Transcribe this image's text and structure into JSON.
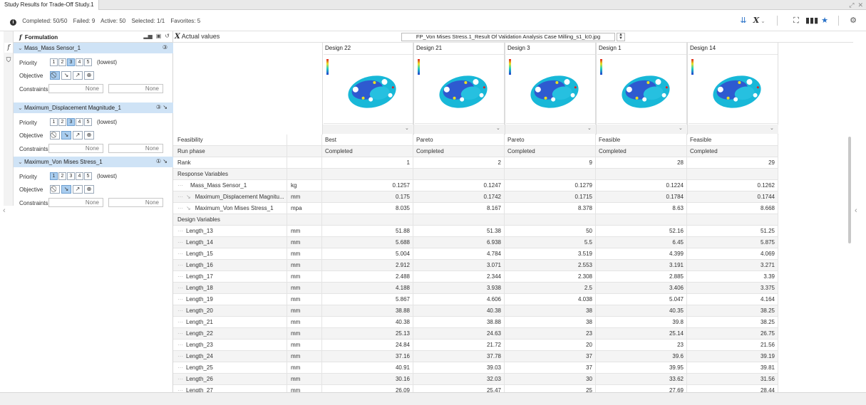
{
  "window": {
    "title": "Study Results for Trade-Off Study.1"
  },
  "status": {
    "completed": "Completed: 50/50",
    "failed": "Failed: 9",
    "active": "Active: 50",
    "selected": "Selected: 1/1",
    "favorites": "Favorites: 5"
  },
  "formulation": {
    "title": "Formulation",
    "sections": [
      {
        "title": "Mass_Mass Sensor_1",
        "badge": "③",
        "priority": [
          "1",
          "2",
          "3",
          "4",
          "5"
        ],
        "priority_selected": "3",
        "priority_note": "(lowest)",
        "objective_selected": 0,
        "constraints": [
          "None",
          "None"
        ]
      },
      {
        "title": "Maximum_Displacement Magnitude_1",
        "badge": "③ ↘",
        "priority": [
          "1",
          "2",
          "3",
          "4",
          "5"
        ],
        "priority_selected": "3",
        "priority_note": "(lowest)",
        "objective_selected": 1,
        "constraints": [
          "None",
          "None"
        ]
      },
      {
        "title": "Maximum_Von Mises Stress_1",
        "badge": "① ↘",
        "priority": [
          "1",
          "2",
          "3",
          "4",
          "5"
        ],
        "priority_selected": "1",
        "priority_note": "(lowest)",
        "objective_selected": 1,
        "constraints": [
          "None",
          "None"
        ]
      }
    ],
    "labels": {
      "priority": "Priority",
      "objective": "Objective",
      "constraints": "Constraints"
    },
    "objective_icons": [
      "⃠",
      "↘",
      "↗",
      "⊕"
    ]
  },
  "results": {
    "x_label": "Actual values",
    "file": "FP_Von Mises Stress.1_Result Of Validation Analysis Case Milling_s1_lc0.jpg",
    "designs": [
      "Design 22",
      "Design 21",
      "Design 3",
      "Design 1",
      "Design 14"
    ],
    "rows": [
      {
        "name": "Feasibility",
        "unit": "",
        "kind": "text",
        "values": [
          "Best",
          "Pareto",
          "Pareto",
          "Feasible",
          "Feasible"
        ]
      },
      {
        "name": "Run phase",
        "unit": "",
        "kind": "text",
        "values": [
          "Completed",
          "Completed",
          "Completed",
          "Completed",
          "Completed"
        ]
      },
      {
        "name": "Rank",
        "unit": "",
        "kind": "num",
        "values": [
          "1",
          "2",
          "9",
          "28",
          "29"
        ]
      },
      {
        "name": "Response Variables",
        "unit": "",
        "kind": "group",
        "values": [
          "",
          "",
          "",
          "",
          ""
        ]
      },
      {
        "name": "Mass_Mass Sensor_1",
        "unit": "kg",
        "kind": "resp",
        "icon": "",
        "values": [
          "0.1257",
          "0.1247",
          "0.1279",
          "0.1224",
          "0.1262"
        ]
      },
      {
        "name": "Maximum_Displacement Magnitu...",
        "unit": "mm",
        "kind": "resp",
        "icon": "↘",
        "values": [
          "0.175",
          "0.1742",
          "0.1715",
          "0.1784",
          "0.1744"
        ]
      },
      {
        "name": "Maximum_Von Mises Stress_1",
        "unit": "mpa",
        "kind": "resp",
        "icon": "↘",
        "values": [
          "8.035",
          "8.167",
          "8.378",
          "8.63",
          "8.668"
        ]
      },
      {
        "name": "Design Variables",
        "unit": "",
        "kind": "group",
        "values": [
          "",
          "",
          "",
          "",
          ""
        ]
      },
      {
        "name": "Length_13",
        "unit": "mm",
        "kind": "var",
        "values": [
          "51.88",
          "51.38",
          "50",
          "52.16",
          "51.25"
        ]
      },
      {
        "name": "Length_14",
        "unit": "mm",
        "kind": "var",
        "values": [
          "5.688",
          "6.938",
          "5.5",
          "6.45",
          "5.875"
        ]
      },
      {
        "name": "Length_15",
        "unit": "mm",
        "kind": "var",
        "values": [
          "5.004",
          "4.784",
          "3.519",
          "4.399",
          "4.069"
        ]
      },
      {
        "name": "Length_16",
        "unit": "mm",
        "kind": "var",
        "values": [
          "2.912",
          "3.071",
          "2.553",
          "3.191",
          "3.271"
        ]
      },
      {
        "name": "Length_17",
        "unit": "mm",
        "kind": "var",
        "values": [
          "2.488",
          "2.344",
          "2.308",
          "2.885",
          "3.39"
        ]
      },
      {
        "name": "Length_18",
        "unit": "mm",
        "kind": "var",
        "values": [
          "4.188",
          "3.938",
          "2.5",
          "3.406",
          "3.375"
        ]
      },
      {
        "name": "Length_19",
        "unit": "mm",
        "kind": "var",
        "values": [
          "5.867",
          "4.606",
          "4.038",
          "5.047",
          "4.164"
        ]
      },
      {
        "name": "Length_20",
        "unit": "mm",
        "kind": "var",
        "values": [
          "38.88",
          "40.38",
          "38",
          "40.35",
          "38.25"
        ]
      },
      {
        "name": "Length_21",
        "unit": "mm",
        "kind": "var",
        "values": [
          "40.38",
          "38.88",
          "38",
          "39.8",
          "38.25"
        ]
      },
      {
        "name": "Length_22",
        "unit": "mm",
        "kind": "var",
        "values": [
          "25.13",
          "24.63",
          "23",
          "25.14",
          "26.75"
        ]
      },
      {
        "name": "Length_23",
        "unit": "mm",
        "kind": "var",
        "values": [
          "24.84",
          "21.72",
          "20",
          "23",
          "21.56"
        ]
      },
      {
        "name": "Length_24",
        "unit": "mm",
        "kind": "var",
        "values": [
          "37.16",
          "37.78",
          "37",
          "39.6",
          "39.19"
        ]
      },
      {
        "name": "Length_25",
        "unit": "mm",
        "kind": "var",
        "values": [
          "40.91",
          "39.03",
          "37",
          "39.95",
          "39.81"
        ]
      },
      {
        "name": "Length_26",
        "unit": "mm",
        "kind": "var",
        "values": [
          "30.16",
          "32.03",
          "30",
          "33.62",
          "31.56"
        ]
      },
      {
        "name": "Length_27",
        "unit": "mm",
        "kind": "var",
        "values": [
          "26.09",
          "25.47",
          "25",
          "27.69",
          "28.44"
        ]
      }
    ]
  },
  "colors": {
    "section_header": "#cfe3f6",
    "selected_box": "#a9cdef",
    "accent": "#2a72c8"
  }
}
